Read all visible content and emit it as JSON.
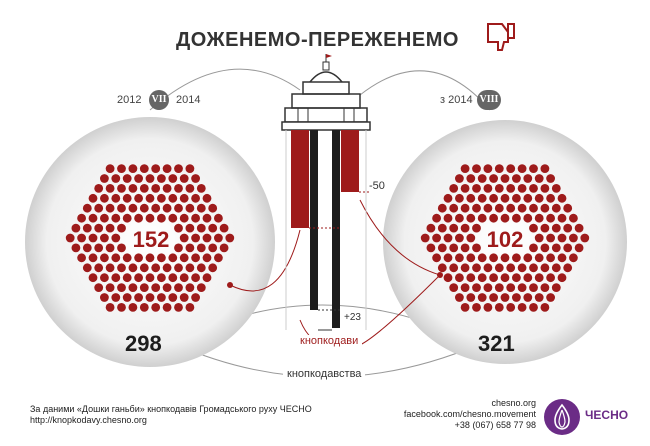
{
  "header": {
    "title": "ДОЖЕНЕМО-ПЕРЕЖЕНЕМО",
    "icon": "thumbs-down-icon"
  },
  "convocation_left": {
    "from": "2012",
    "numeral": "VII",
    "to": "2014"
  },
  "convocation_right": {
    "prefix": "з 2014",
    "numeral": "VIII"
  },
  "left_circle": {
    "count": "152",
    "total": "298"
  },
  "right_circle": {
    "count": "102",
    "total": "321"
  },
  "tower": {
    "diff_top": "-50",
    "diff_bottom": "+23"
  },
  "labels": {
    "knopkodavy": "кнопкодави",
    "knopkodavstva": "кнопкодавства"
  },
  "footer": {
    "source_line1": "За даними «Дошки ганьби» кнопкодавів Громадського руху ЧЕСНО",
    "source_line2": "http://knopkodavy.chesno.org",
    "contact1": "chesno.org",
    "contact2": "facebook.com/chesno.movement",
    "contact3": "+38 (067) 658 77 98",
    "logo_text": "ЧЕСНО"
  },
  "colors": {
    "accent": "#9e1b1b",
    "dark": "#1d1d1d",
    "logo": "#6b2c86"
  }
}
